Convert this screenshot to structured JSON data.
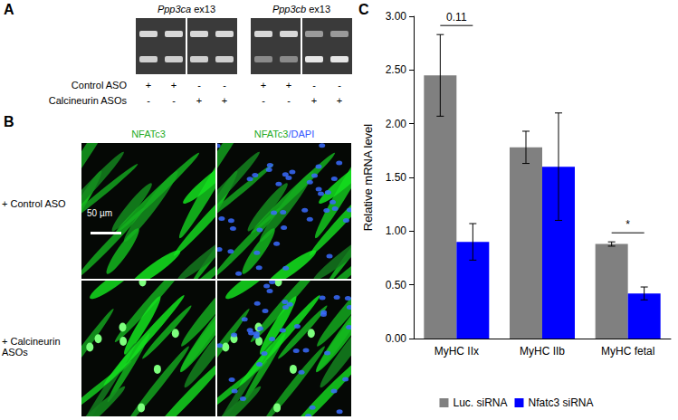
{
  "panels": {
    "A": {
      "label": "A",
      "gels": [
        {
          "title": "Ppp3ca ex13"
        },
        {
          "title": "Ppp3cb ex13"
        }
      ],
      "rows": [
        {
          "label": "Control ASO",
          "marks": [
            "+",
            "+",
            "-",
            "-",
            "+",
            "+",
            "-",
            "-"
          ]
        },
        {
          "label": "Calcineurin ASOs",
          "marks": [
            "-",
            "-",
            "+",
            "+",
            "-",
            "-",
            "+",
            "+"
          ]
        }
      ]
    },
    "B": {
      "label": "B",
      "columns": [
        "NFATc3",
        "NFATc3/DAPI"
      ],
      "rows": [
        "+ Control ASO",
        "+ Calcineurin ASOs"
      ],
      "scale_bar": "50 µm"
    },
    "C": {
      "label": "C"
    }
  },
  "chart_data": {
    "type": "bar",
    "y_label": "Relative mRNA level",
    "categories": [
      "MyHC IIx",
      "MyHC IIb",
      "MyHC fetal"
    ],
    "series": [
      {
        "name": "Luc. siRNA",
        "color": "#808080",
        "values": [
          2.45,
          1.78,
          0.88
        ],
        "errors": [
          0.38,
          0.15,
          0.02
        ]
      },
      {
        "name": "Nfatc3 siRNA",
        "color": "#0000ff",
        "values": [
          0.9,
          1.6,
          0.42
        ],
        "errors": [
          0.17,
          0.5,
          0.06
        ]
      }
    ],
    "ylim": [
      0,
      3
    ],
    "yticks": [
      {
        "value": 0,
        "label": "0.00"
      },
      {
        "value": 0.5,
        "label": "0.50"
      },
      {
        "value": 1,
        "label": "1.00"
      },
      {
        "value": 1.5,
        "label": "1.50"
      },
      {
        "value": 2,
        "label": "2.00"
      },
      {
        "value": 2.5,
        "label": "2.50"
      },
      {
        "value": 3,
        "label": "3.00"
      }
    ],
    "grid": false,
    "legend": "bottom",
    "annotations": [
      {
        "category": "MyHC IIx",
        "text": "0.11"
      },
      {
        "category": "MyHC fetal",
        "text": "*"
      }
    ]
  }
}
